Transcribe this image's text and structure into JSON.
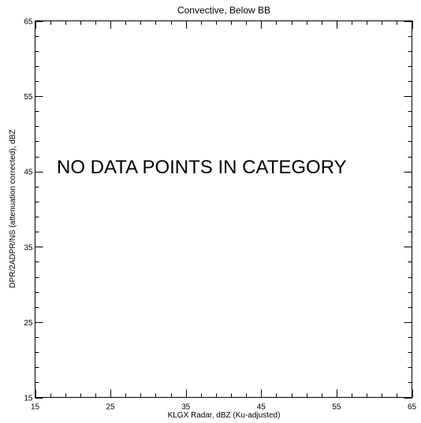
{
  "chart_data": {
    "type": "scatter",
    "title": "Convective, Below BB",
    "xlabel": "KLGX Radar, dBZ (Ku-adjusted)",
    "ylabel": "DPR/2ADPR/NS (attenuation corrected), dBZ",
    "xlim": [
      15,
      65
    ],
    "ylim": [
      15,
      65
    ],
    "xticks": [
      15,
      25,
      35,
      45,
      55,
      65
    ],
    "yticks": [
      15,
      25,
      35,
      45,
      55,
      65
    ],
    "minor_tick_step": 2,
    "grid": false,
    "points": [],
    "annotation": "NO DATA POINTS IN CATEGORY"
  }
}
